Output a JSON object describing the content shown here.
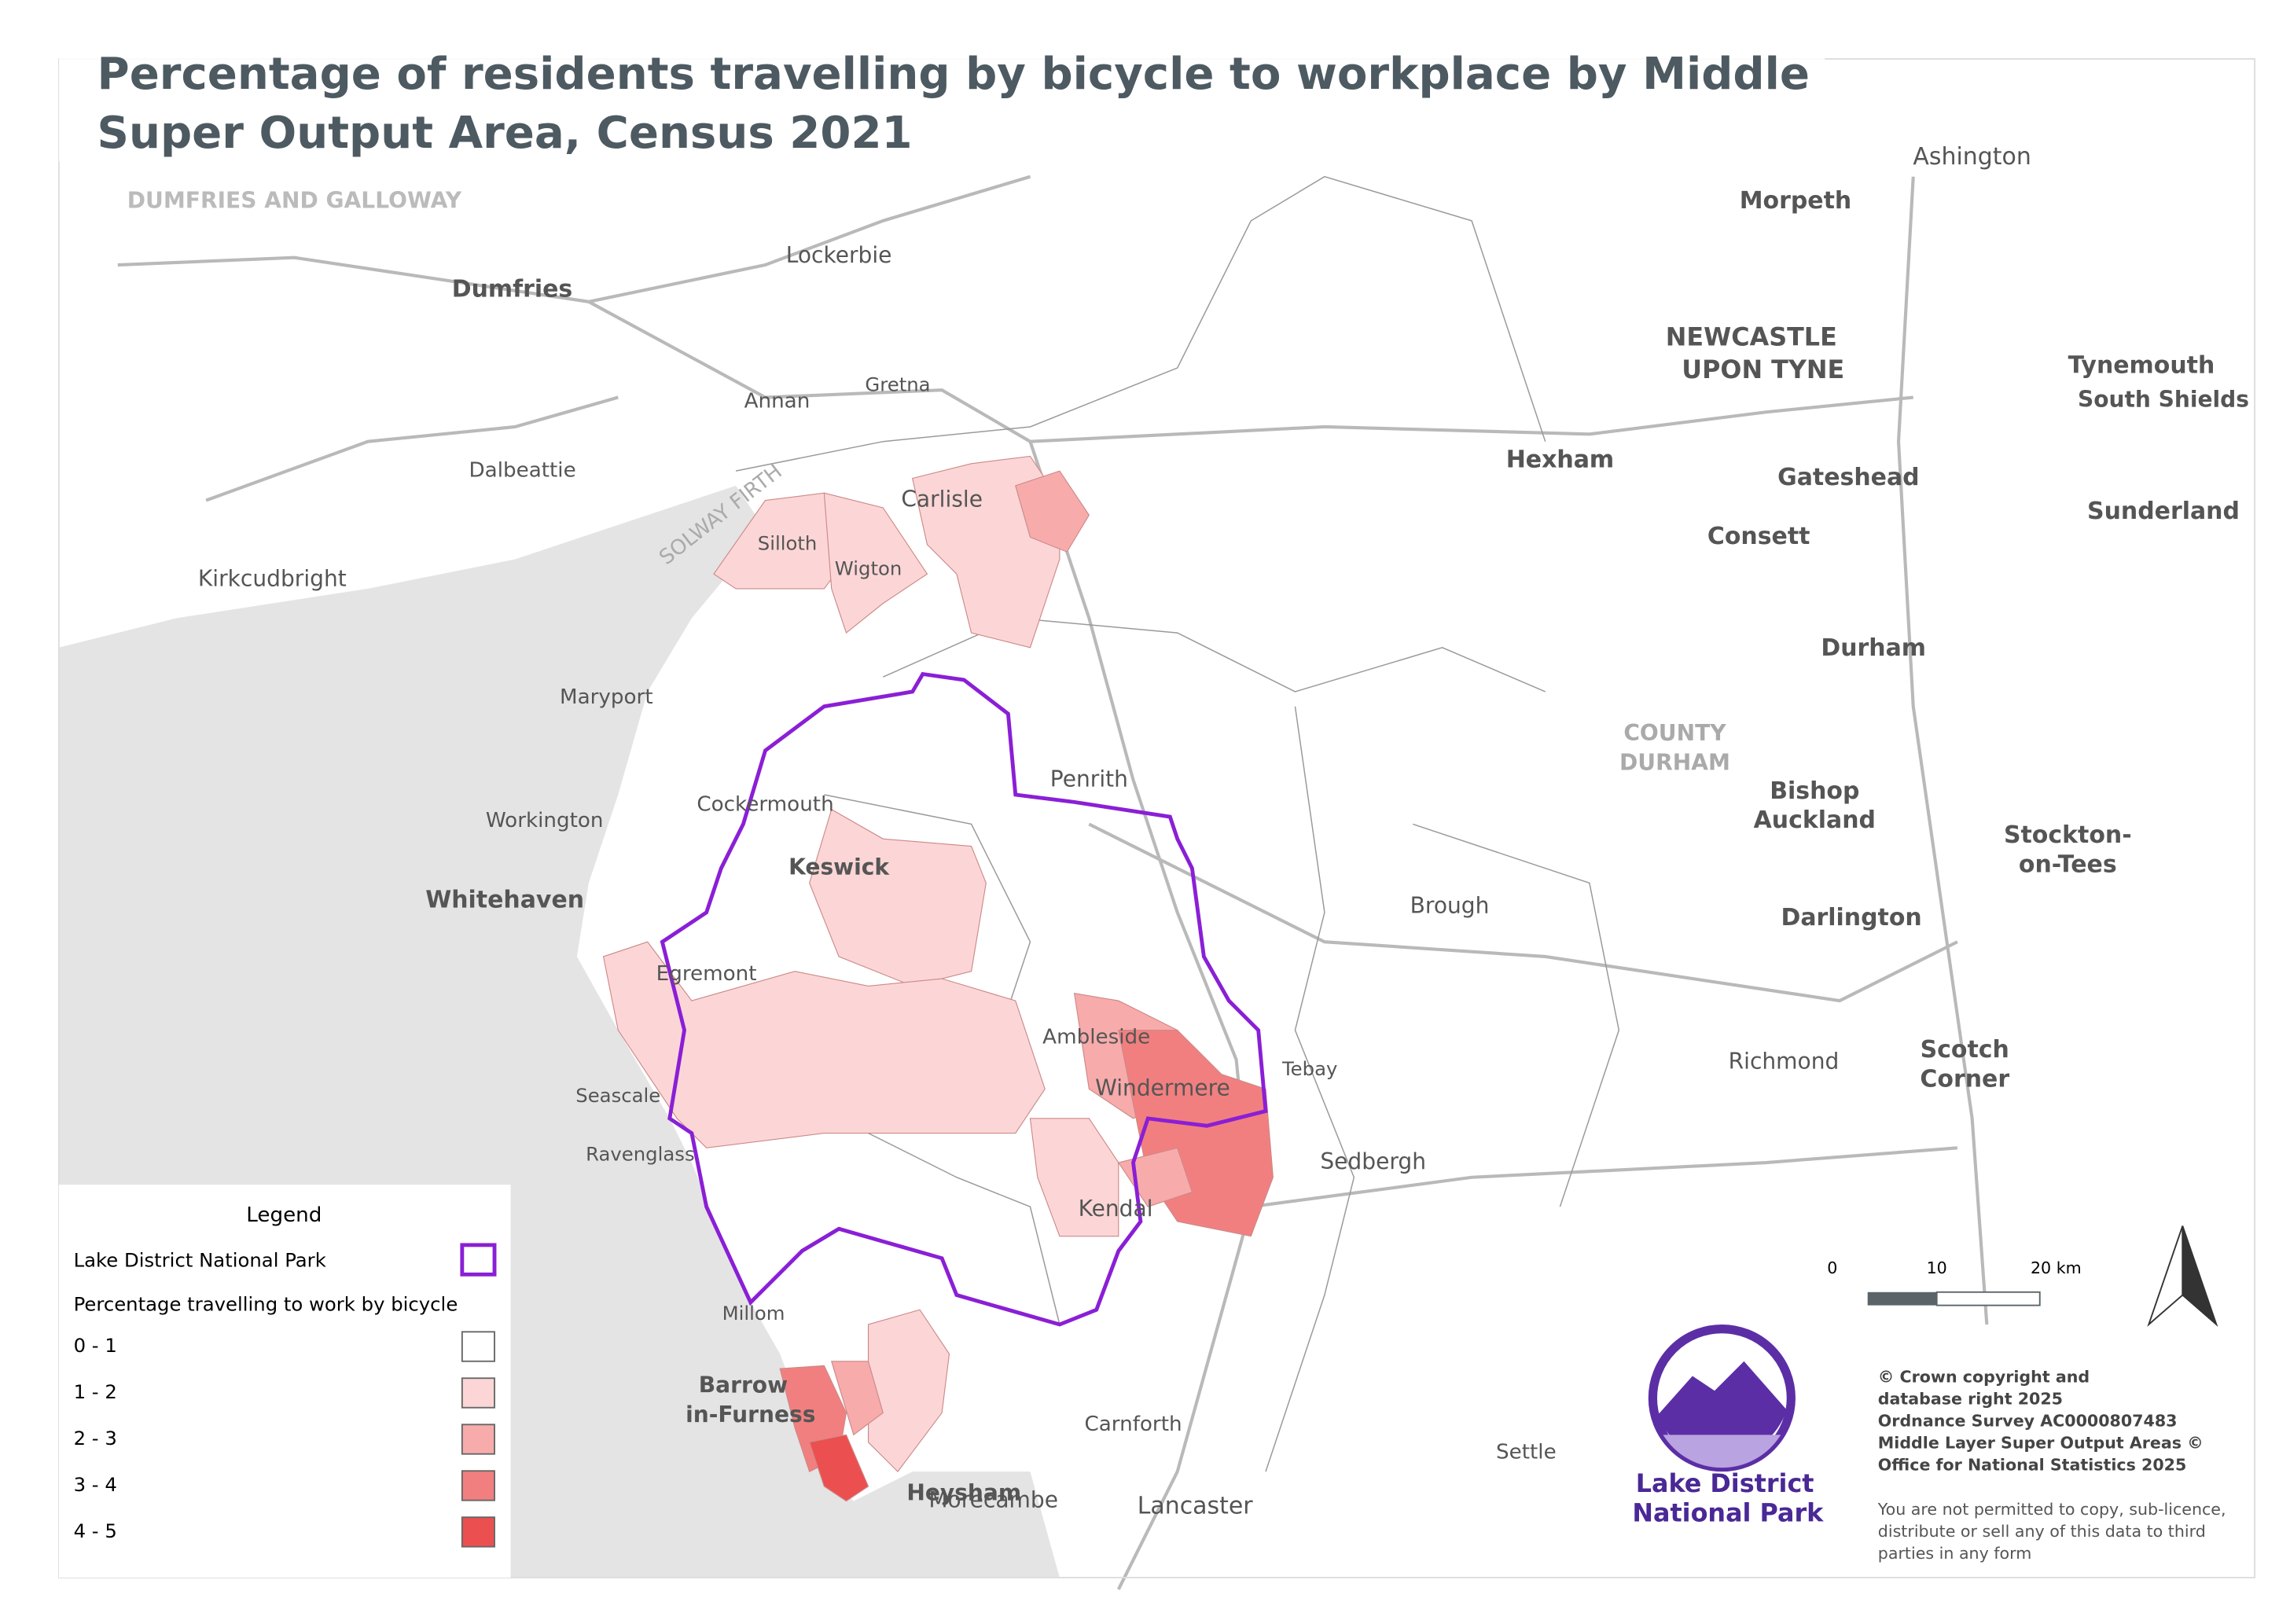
{
  "title_lines": [
    "Percentage of residents travelling by bicycle to workplace by Middle",
    "Super Output Area, Census 2021"
  ],
  "legend": {
    "title": "Legend",
    "park": "Lake District National Park",
    "subtitle": "Percentage travelling to work by bicycle",
    "classes": [
      {
        "label": "0 - 1",
        "color": "#ffffff"
      },
      {
        "label": "1 - 2",
        "color": "#fcd6d6"
      },
      {
        "label": "2 - 3",
        "color": "#f8abab"
      },
      {
        "label": "3 - 4",
        "color": "#f27f7f"
      },
      {
        "label": "4 - 5",
        "color": "#ec4f4f"
      }
    ],
    "park_color": "#8a1fd6"
  },
  "scale_bar": [
    "0",
    "10",
    "20 km"
  ],
  "logo": [
    "Lake District",
    "National Park"
  ],
  "copyright": [
    "© Crown copyright and",
    "database right 2025",
    "Ordnance Survey AC0000807483",
    "Middle Layer Super Output Areas ©",
    "Office for National Statistics 2025"
  ],
  "notice": [
    "You are not permitted to copy, sub-licence,",
    "distribute or sell any of this data to third",
    "parties in any form"
  ],
  "places": [
    "Dumfries",
    "Carlisle",
    "Keswick",
    "Penrith",
    "Whitehaven",
    "Workington",
    "Maryport",
    "Barrow",
    "in-Furness",
    "Lancaster",
    "Kendal",
    "Windermere",
    "Ambleside",
    "Hexham",
    "NEWCASTLE",
    "UPON TYNE",
    "Sunderland",
    "Durham",
    "Darlington",
    "Morpeth",
    "Ashington",
    "Gateshead",
    "Sedbergh",
    "Egremont",
    "Cockermouth",
    "Wigton",
    "Silloth",
    "Millom",
    "Morecambe",
    "Heysham",
    "Annan",
    "Gretna",
    "Lockerbie",
    "Consett",
    "Bishop",
    "Auckland",
    "Richmond",
    "Scotch",
    "Corner",
    "Tebay",
    "Carnforth",
    "Settle",
    "Brough",
    "Kirkcudbright",
    "Dalbeattie",
    "Seascale",
    "Ravenglass",
    "Tynemouth",
    "South Shields",
    "Stockton-",
    "on-Tees",
    "SOLWAY FIRTH",
    "COUNTY",
    "DURHAM",
    "DUMFRIES AND GALLOWAY",
    "Hexham"
  ]
}
